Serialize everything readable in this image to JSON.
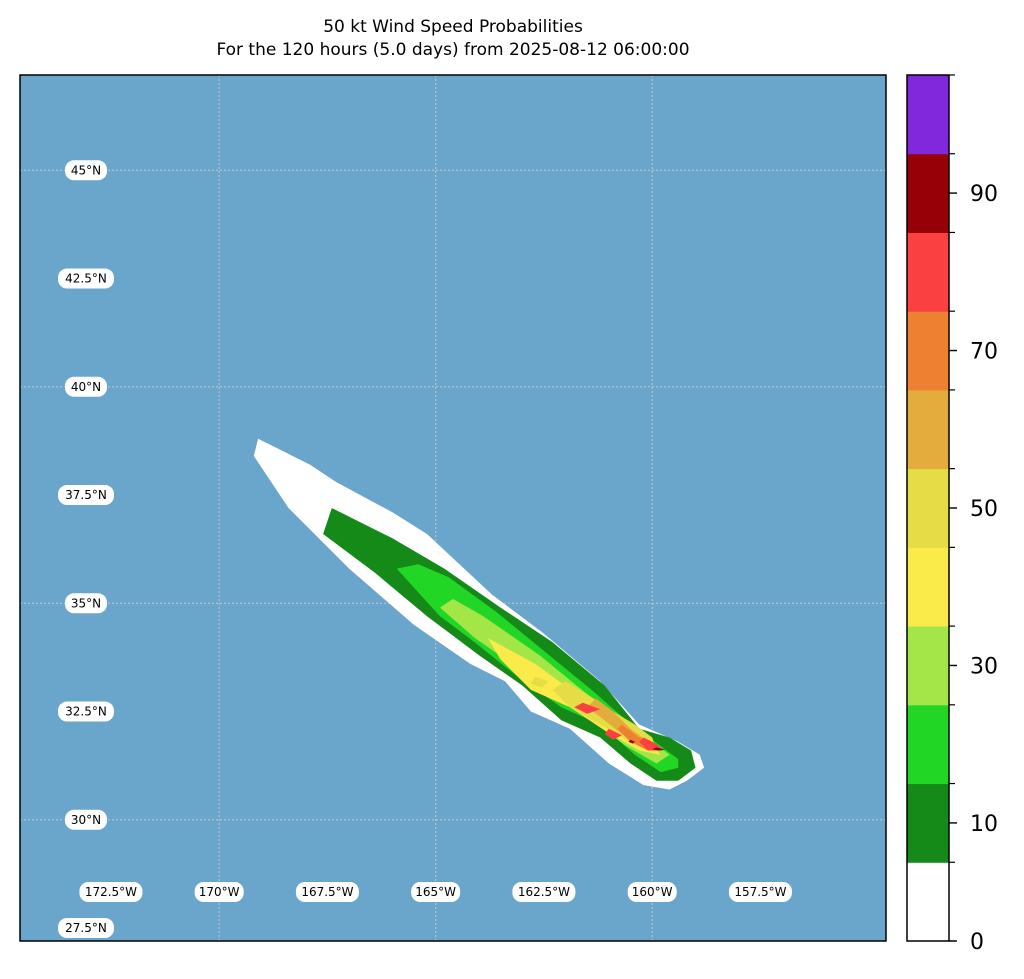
{
  "title": "50 kt Wind Speed Probabilities",
  "subtitle": "For the 120 hours (5.0 days) from 2025-08-12 06:00:00",
  "chart_data": {
    "type": "heatmap",
    "title": "50 kt Wind Speed Probabilities",
    "subtitle": "For the 120 hours (5.0 days) from 2025-08-12 06:00:00",
    "map_background": "#6aa6cc",
    "x_range": [
      -174.6,
      -154.6
    ],
    "y_range": [
      27.2,
      47.2
    ],
    "lon_ticks": [
      {
        "value": -172.5,
        "label": "172.5°W"
      },
      {
        "value": -170,
        "label": "170°W"
      },
      {
        "value": -167.5,
        "label": "167.5°W"
      },
      {
        "value": -165,
        "label": "165°W"
      },
      {
        "value": -162.5,
        "label": "162.5°W"
      },
      {
        "value": -160,
        "label": "160°W"
      },
      {
        "value": -157.5,
        "label": "157.5°W"
      }
    ],
    "lat_ticks": [
      {
        "value": 45,
        "label": "45°N"
      },
      {
        "value": 42.5,
        "label": "42.5°N"
      },
      {
        "value": 40,
        "label": "40°N"
      },
      {
        "value": 37.5,
        "label": "37.5°N"
      },
      {
        "value": 35,
        "label": "35°N"
      },
      {
        "value": 32.5,
        "label": "32.5°N"
      },
      {
        "value": 30,
        "label": "30°N"
      },
      {
        "value": 27.5,
        "label": "27.5°N"
      }
    ],
    "gridlines_lon": [
      -170,
      -165,
      -160
    ],
    "gridlines_lat": [
      45,
      40,
      35,
      30
    ],
    "colorbar": {
      "levels": [
        0,
        10,
        20,
        30,
        40,
        50,
        60,
        70,
        80,
        90,
        100
      ],
      "colors": [
        "#ffffff",
        "#168a18",
        "#22d626",
        "#a4e548",
        "#faea4a",
        "#e6dc45",
        "#e4ac3c",
        "#ee8032",
        "#fa4040",
        "#960006",
        "#8228dc"
      ],
      "tick_labels": [
        "0",
        "10",
        "30",
        "50",
        "70",
        "90"
      ],
      "tick_values": [
        0,
        10,
        30,
        50,
        70,
        90
      ]
    },
    "contours": [
      {
        "level": 0,
        "points": [
          [
            -169.1,
            38.8
          ],
          [
            -168.7,
            38.6
          ],
          [
            -167.9,
            38.2
          ],
          [
            -167.3,
            37.8
          ],
          [
            -166.0,
            37.1
          ],
          [
            -165.2,
            36.6
          ],
          [
            -163.7,
            35.2
          ],
          [
            -162.5,
            34.3
          ],
          [
            -161.2,
            33.2
          ],
          [
            -160.3,
            32.2
          ],
          [
            -159.4,
            31.8
          ],
          [
            -158.9,
            31.5
          ],
          [
            -158.8,
            31.2
          ],
          [
            -159.2,
            30.9
          ],
          [
            -159.6,
            30.7
          ],
          [
            -160.2,
            30.8
          ],
          [
            -161.0,
            31.3
          ],
          [
            -161.9,
            32.1
          ],
          [
            -162.8,
            32.5
          ],
          [
            -163.4,
            33.2
          ],
          [
            -164.2,
            33.6
          ],
          [
            -165.5,
            34.5
          ],
          [
            -167.0,
            35.8
          ],
          [
            -168.4,
            37.2
          ],
          [
            -169.2,
            38.4
          ]
        ]
      },
      {
        "level": 10,
        "points": [
          [
            -167.4,
            37.2
          ],
          [
            -166.0,
            36.5
          ],
          [
            -164.8,
            35.8
          ],
          [
            -163.5,
            34.9
          ],
          [
            -162.3,
            34.1
          ],
          [
            -161.1,
            33.1
          ],
          [
            -160.3,
            32.1
          ],
          [
            -159.6,
            31.9
          ],
          [
            -159.1,
            31.6
          ],
          [
            -159.0,
            31.2
          ],
          [
            -159.4,
            30.9
          ],
          [
            -159.9,
            30.9
          ],
          [
            -160.5,
            31.3
          ],
          [
            -161.2,
            31.9
          ],
          [
            -162.1,
            32.3
          ],
          [
            -163.0,
            33.1
          ],
          [
            -164.0,
            33.8
          ],
          [
            -165.2,
            34.7
          ],
          [
            -166.4,
            35.7
          ],
          [
            -167.6,
            36.6
          ]
        ]
      },
      {
        "level": 20,
        "points": [
          [
            -165.4,
            35.9
          ],
          [
            -164.7,
            35.6
          ],
          [
            -163.6,
            34.8
          ],
          [
            -162.5,
            33.9
          ],
          [
            -161.4,
            33.0
          ],
          [
            -160.6,
            32.3
          ],
          [
            -159.8,
            31.7
          ],
          [
            -159.4,
            31.4
          ],
          [
            -159.4,
            31.2
          ],
          [
            -159.8,
            31.1
          ],
          [
            -160.4,
            31.5
          ],
          [
            -161.2,
            32.2
          ],
          [
            -162.1,
            32.6
          ],
          [
            -163.1,
            33.3
          ],
          [
            -164.1,
            34.1
          ],
          [
            -164.9,
            34.7
          ],
          [
            -165.9,
            35.8
          ]
        ]
      },
      {
        "level": 30,
        "points": [
          [
            -164.6,
            35.1
          ],
          [
            -163.9,
            34.7
          ],
          [
            -162.6,
            33.8
          ],
          [
            -161.5,
            32.9
          ],
          [
            -160.7,
            32.3
          ],
          [
            -160.0,
            31.8
          ],
          [
            -159.6,
            31.5
          ],
          [
            -159.9,
            31.3
          ],
          [
            -160.6,
            31.7
          ],
          [
            -161.4,
            32.3
          ],
          [
            -162.2,
            32.8
          ],
          [
            -163.1,
            33.5
          ],
          [
            -164.1,
            34.2
          ],
          [
            -164.9,
            34.9
          ]
        ]
      },
      {
        "level": 40,
        "points": [
          [
            -163.8,
            34.2
          ],
          [
            -162.7,
            33.6
          ],
          [
            -161.6,
            32.8
          ],
          [
            -160.7,
            32.2
          ],
          [
            -160.0,
            31.7
          ],
          [
            -159.8,
            31.5
          ],
          [
            -160.3,
            31.6
          ],
          [
            -161.0,
            32.0
          ],
          [
            -161.9,
            32.6
          ],
          [
            -162.8,
            33.0
          ],
          [
            -163.5,
            33.7
          ]
        ]
      },
      {
        "level": 50,
        "points": [
          [
            -162.0,
            33.2
          ],
          [
            -161.5,
            32.9
          ],
          [
            -160.9,
            32.5
          ],
          [
            -160.4,
            32.2
          ],
          [
            -160.0,
            31.9
          ],
          [
            -159.9,
            31.6
          ],
          [
            -160.5,
            31.8
          ],
          [
            -161.2,
            32.2
          ],
          [
            -161.9,
            32.6
          ],
          [
            -162.3,
            33.0
          ]
        ]
      },
      {
        "level": 60,
        "points": [
          [
            -161.3,
            32.8
          ],
          [
            -160.9,
            32.5
          ],
          [
            -160.5,
            32.1
          ],
          [
            -160.1,
            31.8
          ],
          [
            -160.0,
            31.6
          ],
          [
            -160.6,
            31.9
          ],
          [
            -161.1,
            32.3
          ],
          [
            -161.5,
            32.6
          ]
        ]
      },
      {
        "level": 70,
        "points": [
          [
            -160.7,
            32.2
          ],
          [
            -160.3,
            31.9
          ],
          [
            -160.0,
            31.8
          ],
          [
            -160.1,
            31.6
          ],
          [
            -160.5,
            31.8
          ],
          [
            -160.8,
            32.1
          ]
        ]
      },
      {
        "level": 80,
        "points": [
          [
            -160.2,
            31.9
          ],
          [
            -159.9,
            31.75
          ],
          [
            -159.75,
            31.6
          ],
          [
            -160.1,
            31.6
          ],
          [
            -160.3,
            31.8
          ]
        ]
      },
      {
        "level": 90,
        "points": [
          [
            -159.9,
            31.67
          ],
          [
            -159.7,
            31.62
          ],
          [
            -159.85,
            31.6
          ],
          [
            -160.0,
            31.63
          ]
        ]
      }
    ],
    "extra_patches": [
      {
        "level": 50,
        "points": [
          [
            -162.7,
            33.3
          ],
          [
            -162.4,
            33.2
          ],
          [
            -162.55,
            33.05
          ],
          [
            -162.8,
            33.15
          ]
        ]
      },
      {
        "level": 80,
        "points": [
          [
            -161.6,
            32.7
          ],
          [
            -161.2,
            32.55
          ],
          [
            -161.5,
            32.45
          ],
          [
            -161.8,
            32.6
          ]
        ]
      },
      {
        "level": 80,
        "points": [
          [
            -161.0,
            32.1
          ],
          [
            -160.7,
            31.95
          ],
          [
            -160.9,
            31.85
          ],
          [
            -161.1,
            31.98
          ]
        ]
      },
      {
        "level": 90,
        "points": [
          [
            -160.5,
            31.85
          ],
          [
            -160.4,
            31.8
          ],
          [
            -160.45,
            31.76
          ],
          [
            -160.55,
            31.8
          ]
        ]
      }
    ]
  }
}
